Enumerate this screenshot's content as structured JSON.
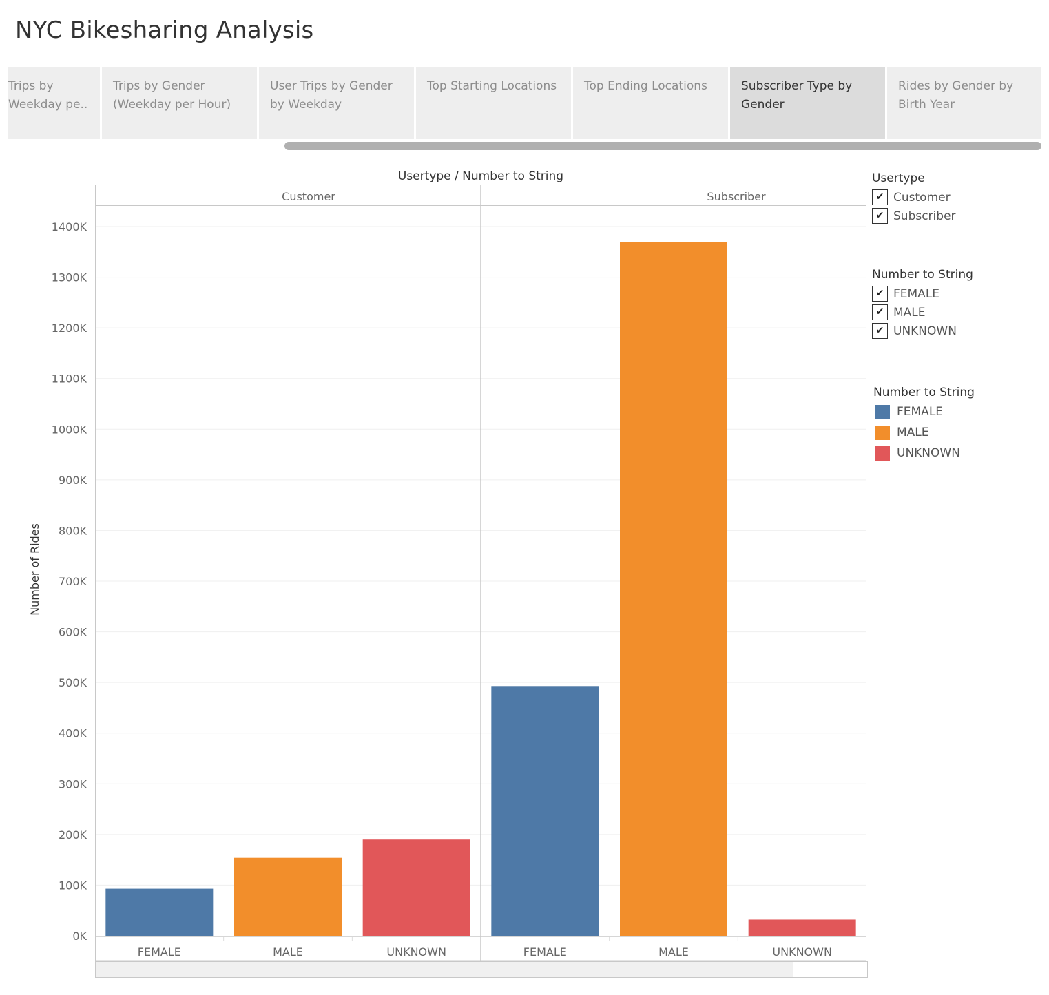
{
  "dashboard": {
    "title": "NYC Bikesharing Analysis"
  },
  "tabs": [
    {
      "label": "Trips by Weekday pe..",
      "active": false
    },
    {
      "label": "Trips by Gender (Weekday per Hour)",
      "active": false
    },
    {
      "label": "User Trips by Gender by Weekday",
      "active": false
    },
    {
      "label": "Top Starting Locations",
      "active": false
    },
    {
      "label": "Top Ending Locations",
      "active": false
    },
    {
      "label": "Subscriber Type by Gender",
      "active": true
    },
    {
      "label": "Rides by Gender by Birth Year",
      "active": false
    }
  ],
  "chart_data": {
    "type": "bar",
    "title": "",
    "header": "Usertype  /  Number to String",
    "ylabel": "Number of Rides",
    "ylim": [
      0,
      1450000
    ],
    "yticks": [
      0,
      100000,
      200000,
      300000,
      400000,
      500000,
      600000,
      700000,
      800000,
      900000,
      1000000,
      1100000,
      1200000,
      1300000,
      1400000
    ],
    "ytick_labels": [
      "0K",
      "100K",
      "200K",
      "300K",
      "400K",
      "500K",
      "600K",
      "700K",
      "800K",
      "900K",
      "1000K",
      "1100K",
      "1200K",
      "1300K",
      "1400K"
    ],
    "grid": true,
    "panes": [
      {
        "name": "Customer",
        "categories": [
          "FEMALE",
          "MALE",
          "UNKNOWN"
        ],
        "values": [
          93000,
          154000,
          190000
        ]
      },
      {
        "name": "Subscriber",
        "categories": [
          "FEMALE",
          "MALE",
          "UNKNOWN"
        ],
        "values": [
          493000,
          1370000,
          32000
        ]
      }
    ],
    "colors": {
      "FEMALE": "#4e79a7",
      "MALE": "#f28e2b",
      "UNKNOWN": "#e15759"
    }
  },
  "filters": [
    {
      "title": "Usertype",
      "items": [
        "Customer",
        "Subscriber"
      ],
      "checked": [
        true,
        true
      ]
    },
    {
      "title": "Number to String",
      "items": [
        "FEMALE",
        "MALE",
        "UNKNOWN"
      ],
      "checked": [
        true,
        true,
        true
      ]
    }
  ],
  "color_legend": {
    "title": "Number to String",
    "items": [
      {
        "label": "FEMALE",
        "color": "#4e79a7"
      },
      {
        "label": "MALE",
        "color": "#f28e2b"
      },
      {
        "label": "UNKNOWN",
        "color": "#e15759"
      }
    ]
  },
  "checkmark": "✔"
}
